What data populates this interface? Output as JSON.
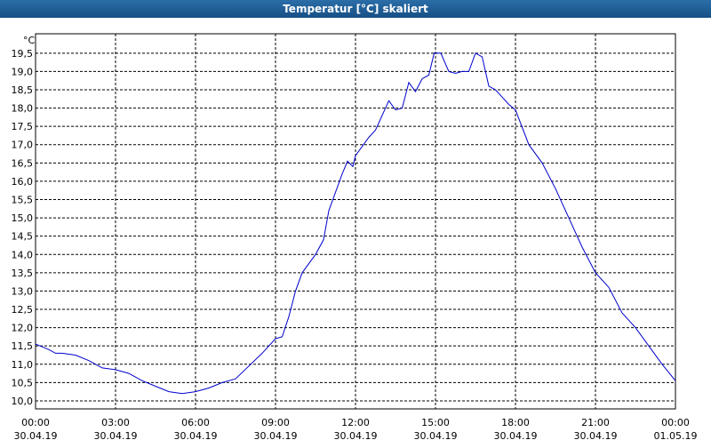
{
  "chart_data": {
    "type": "line",
    "title": "Temperatur [°C] skaliert",
    "y_unit": "°C",
    "x": [
      0,
      0.5,
      0.75,
      1.0,
      1.5,
      2.0,
      2.5,
      3.0,
      3.5,
      4.0,
      4.5,
      5.0,
      5.5,
      6.0,
      6.5,
      7.0,
      7.5,
      8.0,
      8.5,
      9.0,
      9.25,
      9.5,
      9.75,
      10.0,
      10.5,
      10.8,
      11.0,
      11.5,
      11.7,
      11.9,
      12.0,
      12.5,
      12.75,
      13.0,
      13.25,
      13.5,
      13.75,
      14.0,
      14.25,
      14.5,
      14.75,
      14.95,
      15.2,
      15.5,
      15.75,
      16.0,
      16.25,
      16.5,
      16.75,
      17.0,
      17.25,
      17.5,
      17.75,
      18.0,
      18.5,
      19.0,
      19.5,
      20.0,
      20.5,
      21.0,
      21.5,
      22.0,
      22.5,
      23.0,
      23.5,
      24.0
    ],
    "series": [
      {
        "name": "Temperatur",
        "color": "#0000cc",
        "values": [
          11.55,
          11.4,
          11.3,
          11.3,
          11.25,
          11.1,
          10.9,
          10.85,
          10.75,
          10.55,
          10.4,
          10.25,
          10.2,
          10.25,
          10.35,
          10.5,
          10.6,
          10.95,
          11.3,
          11.7,
          11.75,
          12.3,
          13.0,
          13.5,
          14.0,
          14.4,
          15.2,
          16.2,
          16.55,
          16.4,
          16.7,
          17.2,
          17.4,
          17.8,
          18.2,
          17.95,
          18.0,
          18.7,
          18.45,
          18.8,
          18.9,
          19.5,
          19.5,
          19.0,
          18.95,
          19.0,
          19.0,
          19.5,
          19.4,
          18.6,
          18.5,
          18.3,
          18.1,
          17.95,
          17.0,
          16.5,
          15.8,
          15.0,
          14.2,
          13.5,
          13.1,
          12.4,
          12.0,
          11.5,
          11.0,
          10.55
        ]
      }
    ],
    "xlim": [
      0,
      24
    ],
    "xticks": [
      {
        "value": 0,
        "label": "00:00"
      },
      {
        "value": 3,
        "label": "03:00"
      },
      {
        "value": 6,
        "label": "06:00"
      },
      {
        "value": 9,
        "label": "09:00"
      },
      {
        "value": 12,
        "label": "12:00"
      },
      {
        "value": 15,
        "label": "15:00"
      },
      {
        "value": 18,
        "label": "18:00"
      },
      {
        "value": 21,
        "label": "21:00"
      },
      {
        "value": 24,
        "label": "00:00"
      }
    ],
    "xtick_dates": [
      "30.04.19",
      "30.04.19",
      "30.04.19",
      "30.04.19",
      "30.04.19",
      "30.04.19",
      "30.04.19",
      "30.04.19",
      "01.05.19"
    ],
    "ylim": [
      9.78,
      20.03
    ],
    "yticks": [
      {
        "value": 10.0,
        "label": "10,0"
      },
      {
        "value": 10.5,
        "label": "10,5"
      },
      {
        "value": 11.0,
        "label": "11,0"
      },
      {
        "value": 11.5,
        "label": "11,5"
      },
      {
        "value": 12.0,
        "label": "12,0"
      },
      {
        "value": 12.5,
        "label": "12,5"
      },
      {
        "value": 13.0,
        "label": "13,0"
      },
      {
        "value": 13.5,
        "label": "13,5"
      },
      {
        "value": 14.0,
        "label": "14,0"
      },
      {
        "value": 14.5,
        "label": "14,5"
      },
      {
        "value": 15.0,
        "label": "15,0"
      },
      {
        "value": 15.5,
        "label": "15,5"
      },
      {
        "value": 16.0,
        "label": "16,0"
      },
      {
        "value": 16.5,
        "label": "16,5"
      },
      {
        "value": 17.0,
        "label": "17,0"
      },
      {
        "value": 17.5,
        "label": "17,5"
      },
      {
        "value": 18.0,
        "label": "18,0"
      },
      {
        "value": 18.5,
        "label": "18,5"
      },
      {
        "value": 19.0,
        "label": "19,0"
      },
      {
        "value": 19.5,
        "label": "19,5"
      }
    ],
    "grid": true
  }
}
